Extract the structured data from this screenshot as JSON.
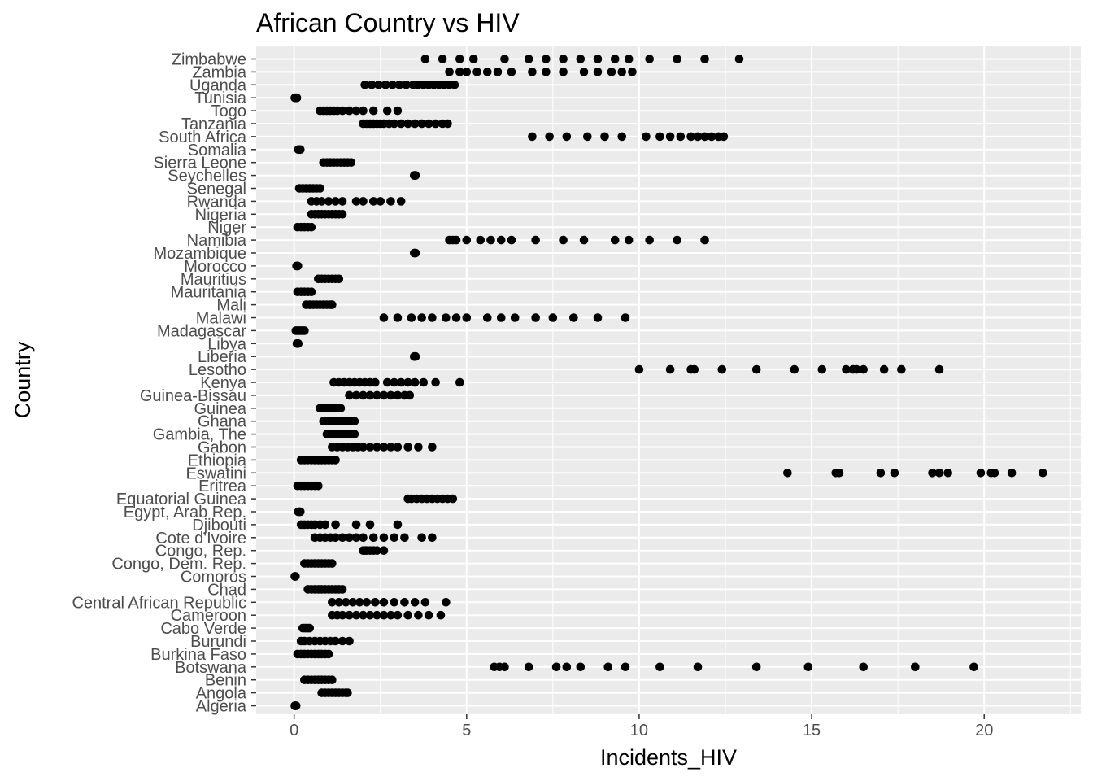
{
  "chart_data": {
    "type": "scatter",
    "title": "African Country vs HIV",
    "xlabel": "Incidents_HIV",
    "ylabel": "Country",
    "xlim": [
      -1.1,
      22.8
    ],
    "x_ticks": [
      0,
      5,
      10,
      15,
      20
    ],
    "grid": true,
    "legend": "none",
    "colors": {
      "panel": "#ebebeb",
      "grid": "#ffffff",
      "point": "#000000",
      "tick_label": "#4d4d4d"
    },
    "categories": [
      "Algeria",
      "Angola",
      "Benin",
      "Botswana",
      "Burkina Faso",
      "Burundi",
      "Cabo Verde",
      "Cameroon",
      "Central African Republic",
      "Chad",
      "Comoros",
      "Congo, Dem. Rep.",
      "Congo, Rep.",
      "Cote d'Ivoire",
      "Djibouti",
      "Egypt, Arab Rep.",
      "Equatorial Guinea",
      "Eritrea",
      "Eswatini",
      "Ethiopia",
      "Gabon",
      "Gambia, The",
      "Ghana",
      "Guinea",
      "Guinea-Bissau",
      "Kenya",
      "Lesotho",
      "Liberia",
      "Libya",
      "Madagascar",
      "Malawi",
      "Mali",
      "Mauritania",
      "Mauritius",
      "Morocco",
      "Mozambique",
      "Namibia",
      "Niger",
      "Nigeria",
      "Rwanda",
      "Senegal",
      "Seychelles",
      "Sierra Leone",
      "Somalia",
      "South Africa",
      "Tanzania",
      "Togo",
      "Tunisia",
      "Uganda",
      "Zambia",
      "Zimbabwe"
    ],
    "values": {
      "Algeria": [
        0.02,
        0.03,
        0.04,
        0.05,
        0.06
      ],
      "Angola": [
        0.8,
        0.9,
        1.0,
        1.1,
        1.2,
        1.3,
        1.4,
        1.5,
        1.55
      ],
      "Benin": [
        0.3,
        0.4,
        0.5,
        0.6,
        0.7,
        0.8,
        0.9,
        1.0,
        1.1
      ],
      "Botswana": [
        5.8,
        5.95,
        6.1,
        6.8,
        7.6,
        7.9,
        8.3,
        9.1,
        9.6,
        10.6,
        11.7,
        13.4,
        14.9,
        16.5,
        18.0,
        19.7
      ],
      "Burkina Faso": [
        0.1,
        0.2,
        0.3,
        0.4,
        0.5,
        0.6,
        0.7,
        0.8,
        0.9,
        1.0
      ],
      "Burundi": [
        0.2,
        0.3,
        0.45,
        0.6,
        0.75,
        0.9,
        1.05,
        1.2,
        1.4,
        1.6
      ],
      "Cabo Verde": [
        0.25,
        0.3,
        0.35,
        0.4,
        0.45
      ],
      "Cameroon": [
        1.1,
        1.25,
        1.4,
        1.6,
        1.8,
        2.0,
        2.2,
        2.4,
        2.6,
        2.8,
        3.0,
        3.3,
        3.6,
        3.9,
        4.25
      ],
      "Central African Republic": [
        1.1,
        1.3,
        1.5,
        1.7,
        1.9,
        2.1,
        2.35,
        2.6,
        2.9,
        3.2,
        3.5,
        3.8,
        4.4
      ],
      "Chad": [
        0.4,
        0.5,
        0.6,
        0.7,
        0.8,
        0.9,
        1.0,
        1.1,
        1.2,
        1.3,
        1.4
      ],
      "Comoros": [
        0.02,
        0.03,
        0.04
      ],
      "Congo, Dem. Rep.": [
        0.3,
        0.4,
        0.5,
        0.6,
        0.7,
        0.8,
        0.9,
        1.0,
        1.1
      ],
      "Congo, Rep.": [
        2.0,
        2.05,
        2.1,
        2.2,
        2.3,
        2.4,
        2.6
      ],
      "Cote d'Ivoire": [
        0.6,
        0.75,
        0.9,
        1.05,
        1.2,
        1.4,
        1.6,
        1.8,
        2.0,
        2.3,
        2.6,
        2.9,
        3.2,
        3.7,
        4.0
      ],
      "Djibouti": [
        0.2,
        0.3,
        0.4,
        0.5,
        0.6,
        0.75,
        0.9,
        1.2,
        1.8,
        2.2,
        3.0
      ],
      "Egypt, Arab Rep.": [
        0.12,
        0.14,
        0.16,
        0.18
      ],
      "Equatorial Guinea": [
        3.3,
        3.4,
        3.55,
        3.7,
        3.85,
        4.0,
        4.15,
        4.3,
        4.45,
        4.6
      ],
      "Eritrea": [
        0.1,
        0.2,
        0.3,
        0.4,
        0.5,
        0.6,
        0.7
      ],
      "Eswatini": [
        14.3,
        15.7,
        15.8,
        17.0,
        17.4,
        18.5,
        18.7,
        18.95,
        19.9,
        20.2,
        20.3,
        20.8,
        21.7
      ],
      "Ethiopia": [
        0.2,
        0.3,
        0.4,
        0.5,
        0.6,
        0.7,
        0.8,
        0.9,
        1.0,
        1.1,
        1.2
      ],
      "Gabon": [
        1.1,
        1.25,
        1.4,
        1.55,
        1.7,
        1.85,
        2.0,
        2.2,
        2.4,
        2.6,
        2.8,
        3.0,
        3.3,
        3.6,
        4.0
      ],
      "Gambia, The": [
        0.95,
        1.05,
        1.15,
        1.25,
        1.35,
        1.45,
        1.55,
        1.65,
        1.75
      ],
      "Ghana": [
        0.85,
        0.95,
        1.05,
        1.15,
        1.25,
        1.35,
        1.45,
        1.55,
        1.65,
        1.75
      ],
      "Guinea": [
        0.75,
        0.85,
        0.95,
        1.05,
        1.15,
        1.25,
        1.35
      ],
      "Guinea-Bissau": [
        1.6,
        1.8,
        2.0,
        2.2,
        2.4,
        2.6,
        2.8,
        3.0,
        3.2,
        3.35
      ],
      "Kenya": [
        1.15,
        1.3,
        1.45,
        1.6,
        1.75,
        1.9,
        2.05,
        2.2,
        2.35,
        2.7,
        2.9,
        3.1,
        3.3,
        3.5,
        3.75,
        4.1,
        4.8
      ],
      "Lesotho": [
        10.0,
        10.9,
        11.5,
        11.6,
        12.4,
        13.4,
        14.5,
        15.3,
        16.0,
        16.2,
        16.3,
        16.5,
        17.1,
        17.6,
        18.7
      ],
      "Liberia": [
        3.48,
        3.5,
        3.52
      ],
      "Libya": [
        0.08,
        0.1,
        0.12
      ],
      "Madagascar": [
        0.05,
        0.1,
        0.15,
        0.2,
        0.25,
        0.3
      ],
      "Malawi": [
        2.6,
        3.0,
        3.4,
        3.7,
        4.0,
        4.4,
        4.7,
        5.0,
        5.6,
        6.0,
        6.4,
        7.0,
        7.5,
        8.1,
        8.8,
        9.6
      ],
      "Mali": [
        0.35,
        0.45,
        0.55,
        0.65,
        0.75,
        0.85,
        0.95,
        1.05,
        1.1
      ],
      "Mauritania": [
        0.1,
        0.2,
        0.3,
        0.4,
        0.5
      ],
      "Mauritius": [
        0.7,
        0.8,
        0.9,
        1.0,
        1.1,
        1.2,
        1.3
      ],
      "Morocco": [
        0.07,
        0.09,
        0.11
      ],
      "Mozambique": [
        3.48,
        3.5,
        3.52
      ],
      "Namibia": [
        4.5,
        4.6,
        4.7,
        5.0,
        5.4,
        5.7,
        6.0,
        6.3,
        7.0,
        7.8,
        8.4,
        9.3,
        9.7,
        10.3,
        11.1,
        11.9
      ],
      "Niger": [
        0.1,
        0.2,
        0.3,
        0.4,
        0.5
      ],
      "Nigeria": [
        0.5,
        0.6,
        0.7,
        0.8,
        0.9,
        1.0,
        1.1,
        1.2,
        1.3,
        1.4
      ],
      "Rwanda": [
        0.5,
        0.65,
        0.8,
        1.0,
        1.2,
        1.4,
        1.8,
        2.0,
        2.3,
        2.5,
        2.8,
        3.1
      ],
      "Senegal": [
        0.15,
        0.25,
        0.35,
        0.45,
        0.55,
        0.65,
        0.75
      ],
      "Seychelles": [
        3.48,
        3.5,
        3.52
      ],
      "Sierra Leone": [
        0.85,
        0.95,
        1.05,
        1.15,
        1.25,
        1.35,
        1.45,
        1.55,
        1.65
      ],
      "Somalia": [
        0.12,
        0.15,
        0.18
      ],
      "South Africa": [
        6.9,
        7.4,
        7.9,
        8.5,
        9.0,
        9.5,
        10.2,
        10.6,
        10.9,
        11.2,
        11.5,
        11.7,
        11.9,
        12.1,
        12.3,
        12.45
      ],
      "Tanzania": [
        2.0,
        2.1,
        2.2,
        2.3,
        2.4,
        2.5,
        2.6,
        2.75,
        2.9,
        3.1,
        3.3,
        3.5,
        3.7,
        3.9,
        4.1,
        4.3,
        4.45
      ],
      "Togo": [
        0.75,
        0.85,
        0.95,
        1.05,
        1.15,
        1.25,
        1.4,
        1.6,
        1.8,
        2.0,
        2.3,
        2.7,
        3.0
      ],
      "Tunisia": [
        0.02,
        0.04,
        0.06,
        0.08
      ],
      "Uganda": [
        2.05,
        2.25,
        2.45,
        2.65,
        2.85,
        3.05,
        3.25,
        3.45,
        3.6,
        3.75,
        3.9,
        4.05,
        4.2,
        4.35,
        4.5,
        4.65
      ],
      "Zambia": [
        4.5,
        4.8,
        5.0,
        5.3,
        5.6,
        5.9,
        6.3,
        6.9,
        7.3,
        7.8,
        8.4,
        8.8,
        9.2,
        9.5,
        9.8
      ],
      "Zimbabwe": [
        3.8,
        4.3,
        4.8,
        5.2,
        6.1,
        6.8,
        7.3,
        7.8,
        8.3,
        8.8,
        9.3,
        9.7,
        10.3,
        11.1,
        11.9,
        12.9
      ]
    }
  }
}
